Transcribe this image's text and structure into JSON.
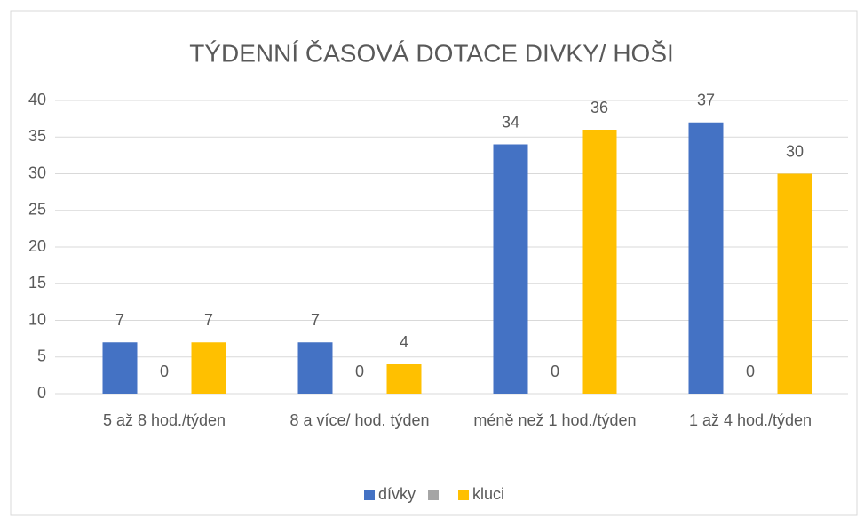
{
  "chart_data": {
    "type": "bar",
    "title": "TÝDENNÍ ČASOVÁ DOTACE DIVKY/ HOŠI",
    "categories": [
      "5 až 8 hod./týden",
      "8 a více/ hod. týden",
      "méně než 1 hod./týden",
      "1 až 4 hod./týden"
    ],
    "series": [
      {
        "name": "dívky",
        "color": "#4472c4",
        "values": [
          7,
          7,
          34,
          37
        ]
      },
      {
        "color": "#a5a5a5",
        "values": [
          0,
          0,
          0,
          0
        ]
      },
      {
        "name": "kluci",
        "color": "#ffc000",
        "values": [
          7,
          4,
          36,
          30
        ]
      }
    ],
    "ylim": [
      0,
      40
    ],
    "yticks": [
      0,
      5,
      10,
      15,
      20,
      25,
      30,
      35,
      40
    ],
    "grid": true,
    "legend": "bottom"
  }
}
